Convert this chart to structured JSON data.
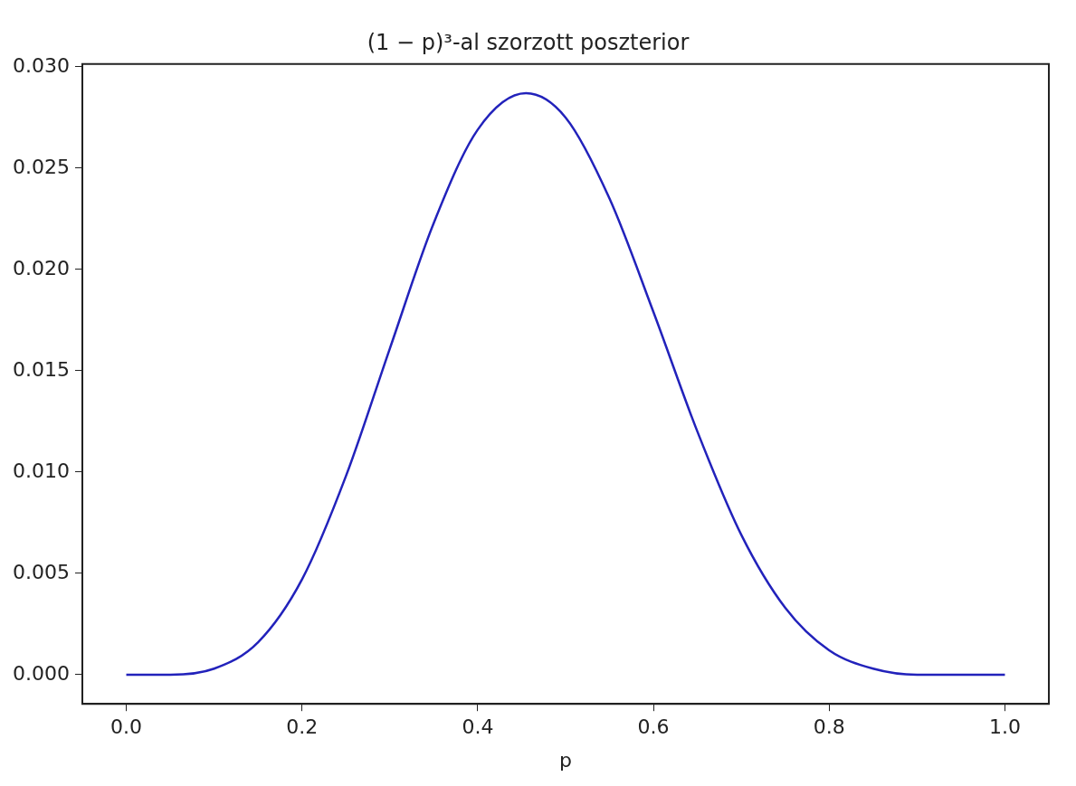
{
  "chart_data": {
    "type": "line",
    "title": "(1 − p)³-al szorzott poszterior",
    "xlabel": "p",
    "x": [
      0,
      0.05,
      0.1,
      0.15,
      0.2,
      0.25,
      0.3,
      0.35,
      0.4,
      0.455,
      0.5,
      0.55,
      0.6,
      0.65,
      0.7,
      0.75,
      0.8,
      0.85,
      0.9,
      0.95,
      1.0
    ],
    "series": [
      {
        "color": "#2222bb",
        "values": [
          0,
          0,
          0.0003,
          0.0016,
          0.0047,
          0.0098,
          0.0161,
          0.0223,
          0.0269,
          0.0287,
          0.0275,
          0.0235,
          0.0179,
          0.012,
          0.0069,
          0.0033,
          0.0012,
          0.0003,
          0,
          0,
          0
        ]
      }
    ],
    "xlim": [
      -0.05,
      1.05
    ],
    "xticks": [
      {
        "value": 0,
        "label": "0.0"
      },
      0.2,
      0.4,
      0.6,
      0.8,
      {
        "value": 1,
        "label": "1.0"
      }
    ],
    "ylim": [
      -0.00144,
      0.03014
    ],
    "yticks": [
      {
        "value": 0,
        "label": "0.000"
      },
      {
        "value": 0.005,
        "label": "0.005"
      },
      {
        "value": 0.01,
        "label": "0.010"
      },
      {
        "value": 0.015,
        "label": "0.015"
      },
      {
        "value": 0.02,
        "label": "0.020"
      },
      {
        "value": 0.025,
        "label": "0.025"
      },
      {
        "value": 0.03,
        "label": "0.030"
      }
    ],
    "grid": false,
    "legend": false,
    "marker": "none",
    "line_style": "solid"
  }
}
